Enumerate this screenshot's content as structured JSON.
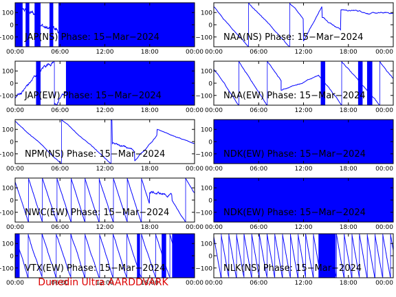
{
  "figure": {
    "footer": "Dunedin Ultra AARDDVARK",
    "line_color": "#0000ff",
    "x_ticks": [
      "00:00",
      "06:00",
      "12:00",
      "18:00",
      "00:00"
    ],
    "y_ticks": [
      "100",
      "0",
      "−100"
    ]
  },
  "chart_data": [
    {
      "type": "line",
      "title": "JAP(NS) Phase: 15−Mar−2024",
      "xlim_hours": [
        0,
        24
      ],
      "ylim": [
        -180,
        180
      ],
      "x_ticks": [
        "00:00",
        "06:00",
        "12:00",
        "18:00",
        "00:00"
      ],
      "y_ticks": [
        100,
        0,
        -100
      ],
      "description_of_trace": "wraps densely from about 01:00 to 24:00",
      "noise_intervals_hours": [
        [
          0.0,
          1.0
        ],
        [
          1.4,
          1.9
        ],
        [
          2.6,
          3.4
        ],
        [
          4.6,
          5.1
        ],
        [
          5.8,
          24.0
        ]
      ]
    },
    {
      "type": "line",
      "title": "NAA(NS) Phase: 15−Mar−2024",
      "xlim_hours": [
        0,
        24
      ],
      "ylim": [
        -180,
        180
      ],
      "x_ticks": [
        "00:00",
        "06:00",
        "12:00",
        "18:00",
        "00:00"
      ],
      "y_ticks": [
        100,
        0,
        -100
      ],
      "description_of_trace": "slow sawtooth phase drift"
    },
    {
      "type": "line",
      "title": "JAP(EW) Phase: 15−Mar−2024",
      "xlim_hours": [
        0,
        24
      ],
      "ylim": [
        -180,
        180
      ],
      "x_ticks": [
        "00:00",
        "06:00",
        "12:00",
        "18:00",
        "00:00"
      ],
      "y_ticks": [
        100,
        0,
        -100
      ],
      "noise_intervals_hours": [
        [
          2.8,
          3.4
        ],
        [
          6.8,
          24.0
        ]
      ]
    },
    {
      "type": "line",
      "title": "NAA(EW) Phase: 15−Mar−2024",
      "xlim_hours": [
        0,
        24
      ],
      "ylim": [
        -180,
        180
      ],
      "x_ticks": [
        "00:00",
        "06:00",
        "12:00",
        "18:00",
        "00:00"
      ],
      "y_ticks": [
        100,
        0,
        -100
      ],
      "noise_intervals_hours": [
        [
          14.3,
          14.9
        ],
        [
          19.3,
          19.9
        ],
        [
          20.5,
          21.2
        ]
      ]
    },
    {
      "type": "line",
      "title": "NPM(NS) Phase: 15−Mar−2024",
      "xlim_hours": [
        0,
        24
      ],
      "ylim": [
        -180,
        180
      ],
      "x_ticks": [
        "00:00",
        "06:00",
        "12:00",
        "18:00",
        "00:00"
      ],
      "y_ticks": [
        100,
        0,
        -100
      ]
    },
    {
      "type": "line",
      "title": "NDK(EW) Phase: 15−Mar−2024",
      "xlim_hours": [
        0,
        24
      ],
      "ylim": [
        -180,
        180
      ],
      "x_ticks": [
        "00:00",
        "06:00",
        "12:00",
        "18:00",
        "00:00"
      ],
      "y_ticks": [
        100,
        0,
        -100
      ],
      "noise_intervals_hours": [
        [
          0.0,
          24.0
        ]
      ]
    },
    {
      "type": "line",
      "title": "NWC(EW) Phase: 15−Mar−2024",
      "xlim_hours": [
        0,
        24
      ],
      "ylim": [
        -180,
        180
      ],
      "x_ticks": [
        "00:00",
        "06:00",
        "12:00",
        "18:00",
        "00:00"
      ],
      "y_ticks": [
        100,
        0,
        -100
      ]
    },
    {
      "type": "line",
      "title": "NDK(EW) Phase: 15−Mar−2024",
      "xlim_hours": [
        0,
        24
      ],
      "ylim": [
        -180,
        180
      ],
      "x_ticks": [
        "00:00",
        "06:00",
        "12:00",
        "18:00",
        "00:00"
      ],
      "y_ticks": [
        100,
        0,
        -100
      ],
      "noise_intervals_hours": [
        [
          0.0,
          24.0
        ]
      ]
    },
    {
      "type": "line",
      "title": "VTX(EW) Phase: 15−Mar−2024",
      "xlim_hours": [
        0,
        24
      ],
      "ylim": [
        -180,
        180
      ],
      "x_ticks": [
        "00:00",
        "06:00",
        "12:00",
        "18:00",
        "00:00"
      ],
      "y_ticks": [
        100,
        0,
        -100
      ],
      "noise_intervals_hours": [
        [
          0.0,
          0.6
        ],
        [
          16.3,
          16.7
        ],
        [
          19.6,
          20.2
        ],
        [
          21.0,
          24.0
        ]
      ]
    },
    {
      "type": "line",
      "title": "NLK(NS) Phase: 15−Mar−2024",
      "xlim_hours": [
        0,
        24
      ],
      "ylim": [
        -180,
        180
      ],
      "x_ticks": [
        "00:00",
        "06:00",
        "12:00",
        "18:00",
        "00:00"
      ],
      "y_ticks": [
        100,
        0,
        -100
      ],
      "noise_intervals_hours": [
        [
          14.0,
          16.3
        ]
      ]
    }
  ]
}
